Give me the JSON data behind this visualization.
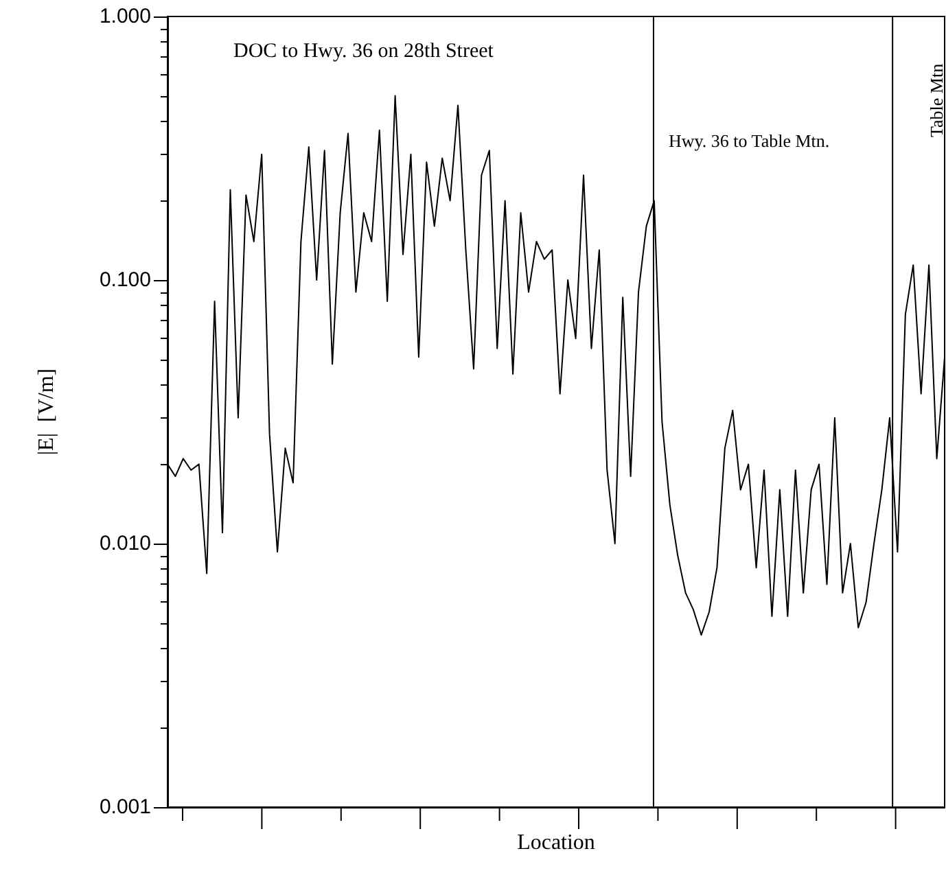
{
  "chart_data": {
    "type": "line",
    "xlabel": "Location",
    "ylabel": "|E|  [V/m]",
    "log": "y",
    "line_style": "solid",
    "tick_labels": "y",
    "annotations": [
      "DOC to Hwy. 36 on 28th Street",
      "Hwy. 36 to Table Mtn.",
      "Table Mtn"
    ],
    "ylim": [
      0.001,
      1
    ],
    "yticks": [
      {
        "value": 0.001,
        "label": "0.001"
      },
      {
        "value": 0.002,
        "label": null
      },
      {
        "value": 0.003,
        "label": null
      },
      {
        "value": 0.004,
        "label": null
      },
      {
        "value": 0.005,
        "label": null
      },
      {
        "value": 0.006,
        "label": null
      },
      {
        "value": 0.007,
        "label": null
      },
      {
        "value": 0.008,
        "label": null
      },
      {
        "value": 0.009,
        "label": null
      },
      {
        "value": 0.01,
        "label": "0.010"
      },
      {
        "value": 0.02,
        "label": null
      },
      {
        "value": 0.03,
        "label": null
      },
      {
        "value": 0.04,
        "label": null
      },
      {
        "value": 0.05,
        "label": null
      },
      {
        "value": 0.06,
        "label": null
      },
      {
        "value": 0.07,
        "label": null
      },
      {
        "value": 0.08,
        "label": null
      },
      {
        "value": 0.09,
        "label": null
      },
      {
        "value": 0.1,
        "label": "0.100"
      },
      {
        "value": 0.2,
        "label": null
      },
      {
        "value": 0.3,
        "label": null
      },
      {
        "value": 0.4,
        "label": null
      },
      {
        "value": 0.5,
        "label": null
      },
      {
        "value": 0.6,
        "label": null
      },
      {
        "value": 0.7,
        "label": null
      },
      {
        "value": 0.8,
        "label": null
      },
      {
        "value": 0.9,
        "label": null
      },
      {
        "value": 1,
        "label": "1.000"
      }
    ],
    "ref_lines": [
      {
        "axis": "x",
        "color": "#000000"
      },
      {
        "axis": "x",
        "color": "#000000"
      }
    ],
    "categories": [
      null,
      null,
      null,
      null,
      null,
      null,
      null,
      null,
      null,
      null,
      null,
      null,
      null,
      null,
      null,
      null,
      null,
      null,
      null,
      null,
      null,
      null,
      null,
      null,
      null,
      null,
      null,
      null,
      null,
      null,
      null,
      null,
      null,
      null,
      null,
      null,
      null,
      null,
      null,
      null,
      null,
      null,
      null,
      null,
      null,
      null,
      null,
      null,
      null,
      null,
      null,
      null,
      null,
      null,
      null,
      null,
      null,
      null,
      null,
      null,
      null,
      null,
      null,
      null,
      null,
      null,
      null,
      null,
      null,
      null,
      null,
      null,
      null,
      null,
      null,
      null,
      null,
      null,
      null,
      null,
      null,
      null,
      null,
      null,
      null,
      null,
      null,
      null,
      null,
      null,
      null,
      null,
      null,
      null,
      null,
      null,
      null,
      null,
      null,
      null
    ],
    "series": [
      {
        "color": "#000000",
        "values": [
          0.02,
          0.018,
          0.021,
          0.019,
          0.02,
          0.0077,
          0.083,
          0.011,
          0.22,
          0.03,
          0.21,
          0.14,
          0.3,
          0.026,
          0.0093,
          0.023,
          0.017,
          0.14,
          0.32,
          0.1,
          0.31,
          0.048,
          0.18,
          0.36,
          0.09,
          0.18,
          0.14,
          0.37,
          0.083,
          0.5,
          0.125,
          0.3,
          0.051,
          0.28,
          0.16,
          0.29,
          0.2,
          0.46,
          0.13,
          0.046,
          0.25,
          0.31,
          0.055,
          0.2,
          0.044,
          0.18,
          0.09,
          0.14,
          0.12,
          0.13,
          0.037,
          0.1,
          0.06,
          0.25,
          0.055,
          0.13,
          0.019,
          0.01,
          0.086,
          0.018,
          0.09,
          0.16,
          0.2,
          0.029,
          0.014,
          0.009,
          0.0065,
          0.0056,
          0.0045,
          0.0055,
          0.0081,
          0.023,
          0.032,
          0.016,
          0.02,
          0.0081,
          0.019,
          0.0053,
          0.016,
          0.0053,
          0.019,
          0.0065,
          0.016,
          0.02,
          0.007,
          0.03,
          0.0065,
          0.01,
          0.0048,
          0.006,
          0.01,
          0.016,
          0.03,
          0.0093,
          0.074,
          0.114,
          0.037,
          0.114,
          0.021,
          0.051
        ]
      }
    ]
  }
}
